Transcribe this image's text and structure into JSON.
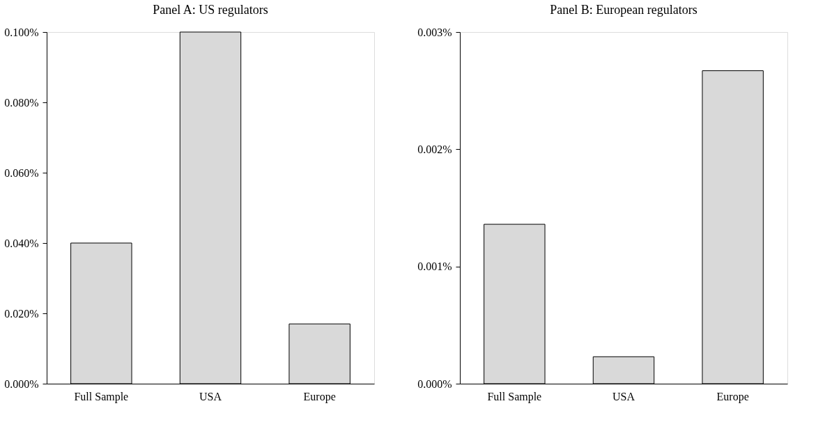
{
  "chart_data": [
    {
      "type": "bar",
      "title": "Panel A: US regulators",
      "categories": [
        "Full Sample",
        "USA",
        "Europe"
      ],
      "values": [
        0.04,
        0.1,
        0.017
      ],
      "color": "#d9d9d9",
      "ylim": [
        0,
        0.1
      ],
      "yticks": [
        {
          "value": 0,
          "label": "0.000%"
        },
        {
          "value": 0.02,
          "label": "0.020%"
        },
        {
          "value": 0.04,
          "label": "0.040%"
        },
        {
          "value": 0.06,
          "label": "0.060%"
        },
        {
          "value": 0.08,
          "label": "0.080%"
        },
        {
          "value": 0.1,
          "label": "0.100%"
        }
      ],
      "grid": false
    },
    {
      "type": "bar",
      "title": "Panel B: European regulators",
      "categories": [
        "Full Sample",
        "USA",
        "Europe"
      ],
      "values": [
        0.00136,
        0.00023,
        0.00267
      ],
      "color": "#d9d9d9",
      "ylim": [
        0,
        0.003
      ],
      "yticks": [
        {
          "value": 0,
          "label": "0.000%"
        },
        {
          "value": 0.001,
          "label": "0.001%"
        },
        {
          "value": 0.002,
          "label": "0.002%"
        },
        {
          "value": 0.003,
          "label": "0.003%"
        }
      ],
      "grid": false
    }
  ]
}
